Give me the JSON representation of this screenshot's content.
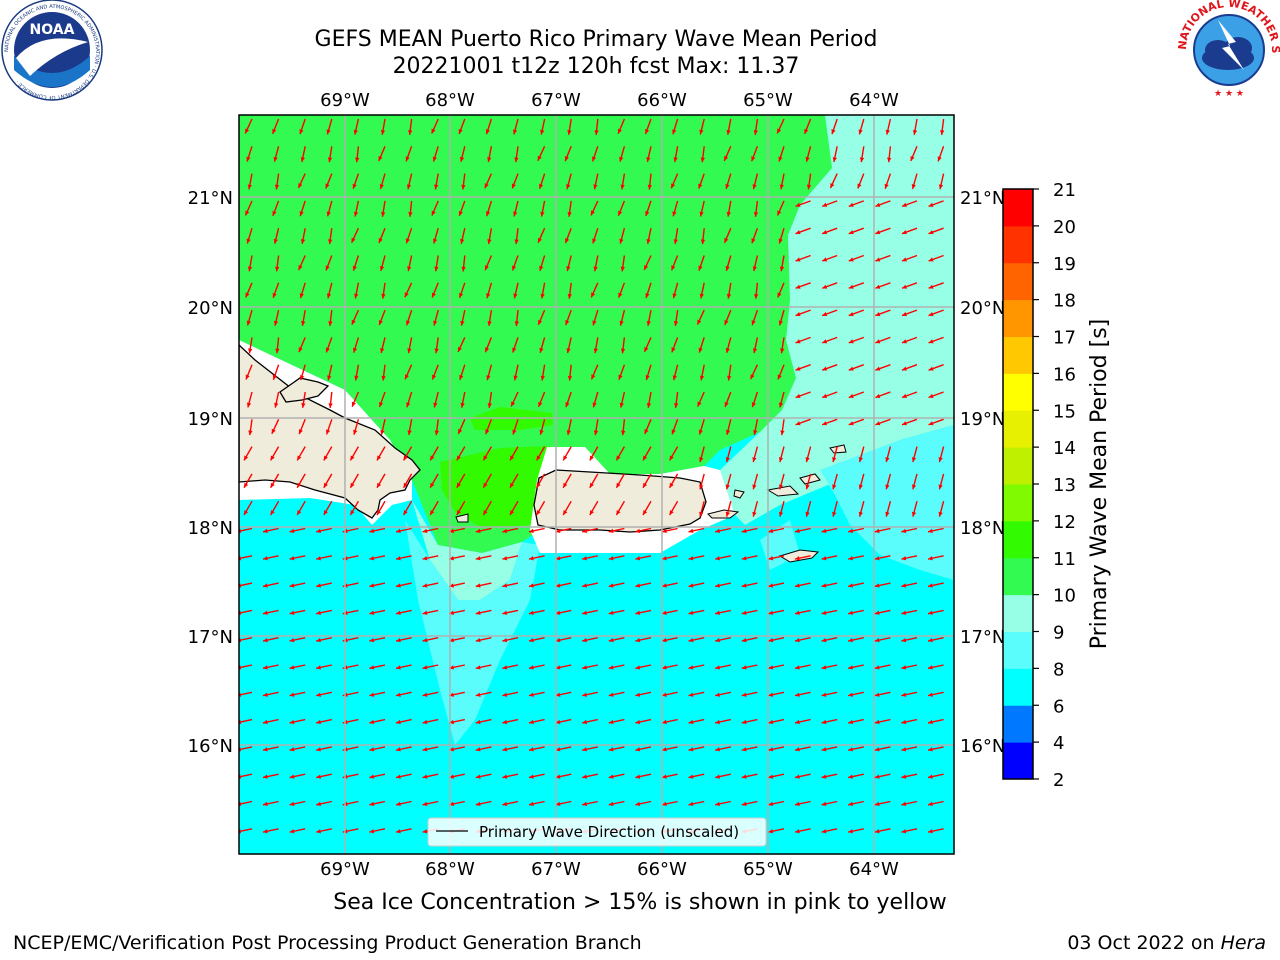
{
  "title": {
    "line1": "GEFS MEAN Puerto Rico Primary Wave Mean Period",
    "line2": "20221001 t12z 120h fcst   Max: 11.37"
  },
  "map": {
    "lon_labels": [
      "69°W",
      "68°W",
      "67°W",
      "66°W",
      "65°W",
      "64°W"
    ],
    "lat_labels": [
      "21°N",
      "20°N",
      "19°N",
      "18°N",
      "17°N",
      "16°N"
    ],
    "legend_label": "Primary Wave Direction (unscaled)",
    "arrow_color": "#ff0000",
    "land_color": "#efecdc"
  },
  "colorbar": {
    "label": "Primary Wave Mean Period [s]",
    "ticks": [
      "2",
      "4",
      "6",
      "8",
      "9",
      "10",
      "11",
      "12",
      "13",
      "14",
      "15",
      "16",
      "17",
      "18",
      "19",
      "20",
      "21"
    ],
    "colors": [
      "#0000ff",
      "#0078ff",
      "#00ffff",
      "#5afcfc",
      "#96ffe6",
      "#32fa50",
      "#32fa00",
      "#80fa00",
      "#bef000",
      "#e6f000",
      "#ffff00",
      "#ffc800",
      "#ff9600",
      "#ff6400",
      "#ff3200",
      "#ff0000"
    ]
  },
  "chart_data": {
    "type": "heatmap",
    "variable": "Primary Wave Mean Period",
    "units": "s",
    "max": 11.37,
    "lon_range": [
      -70,
      -63.25
    ],
    "lat_range": [
      15,
      21.75
    ],
    "levels": [
      2,
      4,
      6,
      8,
      9,
      10,
      11,
      12,
      13,
      14,
      15,
      16,
      17,
      18,
      19,
      20,
      21
    ],
    "regions": [
      {
        "level_range": [
          10,
          11
        ],
        "area": "north of ~19N, west of ~64.5W"
      },
      {
        "level_range": [
          11,
          12
        ],
        "area": "Mona Passage and north of west Puerto Rico"
      },
      {
        "level_range": [
          9,
          10
        ],
        "area": "northeast corner and near the Virgin Islands"
      },
      {
        "level_range": [
          8,
          9
        ],
        "area": "south of Mona Passage"
      },
      {
        "level_range": [
          6,
          8
        ],
        "area": "Caribbean Sea south of ~18N"
      }
    ]
  },
  "note": "Sea Ice Concentration > 15% is shown in pink to yellow",
  "footer": {
    "left": "NCEP/EMC/Verification Post Processing Product Generation Branch",
    "right_prefix": "03 Oct 2022 on ",
    "right_machine": "Hera"
  },
  "logos": {
    "noaa": "NOAA",
    "noaa_ring": "NATIONAL OCEANIC AND ATMOSPHERIC ADMINISTRATION · U.S. DEPARTMENT OF COMMERCE ·",
    "nws_ring": "NATIONAL WEATHER SERVICE"
  }
}
